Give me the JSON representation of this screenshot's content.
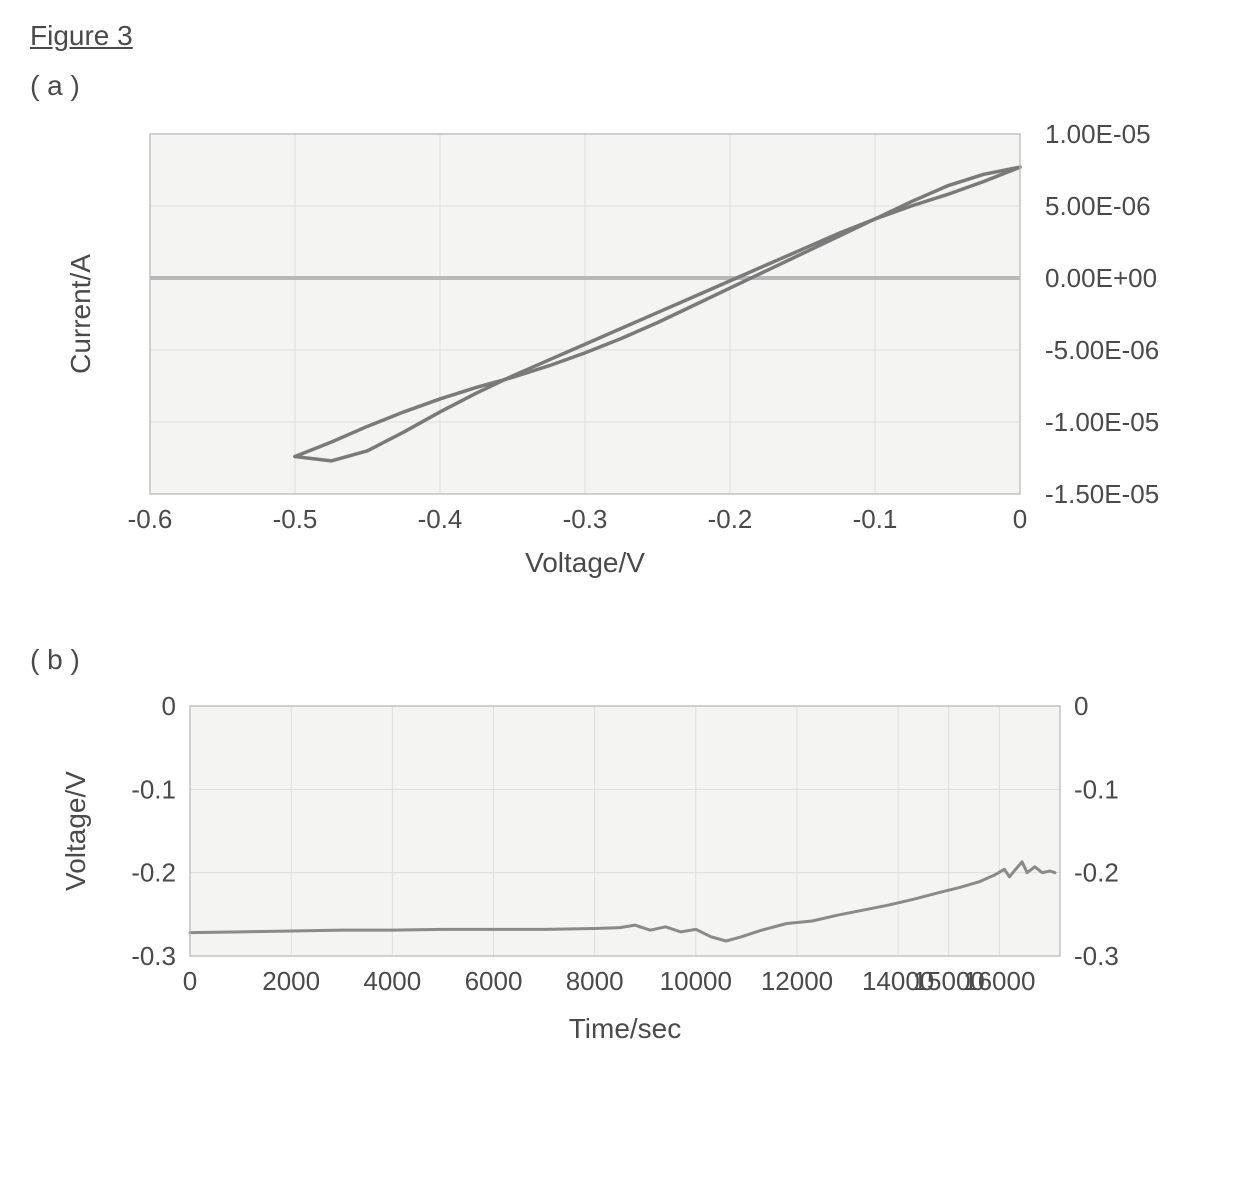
{
  "figure_title": "Figure 3",
  "panel_a": {
    "label": "( a )",
    "type": "line",
    "xlabel": "Voltage/V",
    "ylabel": "Current/A",
    "xlim": [
      -0.6,
      0.0
    ],
    "ylim": [
      -1.5e-05,
      1e-05
    ],
    "xticks": [
      -0.6,
      -0.5,
      -0.4,
      -0.3,
      -0.2,
      -0.1,
      0
    ],
    "xtick_labels": [
      "-0.6",
      "-0.5",
      "-0.4",
      "-0.3",
      "-0.2",
      "-0.1",
      "0"
    ],
    "yticks": [
      -1.5e-05,
      -1e-05,
      -5e-06,
      0.0,
      5e-06,
      1e-05
    ],
    "ytick_labels": [
      "-1.50E-05",
      "-1.00E-05",
      "-5.00E-06",
      "0.00E+00",
      "5.00E-06",
      "1.00E-05"
    ],
    "ytick_side": "right",
    "label_fontsize": 28,
    "tick_fontsize": 26,
    "plot_bg": "#f4f4f2",
    "page_bg": "#ffffff",
    "grid_color": "#dedede",
    "zero_line_color": "#b8b8b8",
    "zero_line_width": 4,
    "border_color": "#bcbcbc",
    "line_color": "#7a7a7a",
    "line_width": 3.5,
    "text_color": "#4a4a4a",
    "data_forward": [
      [
        -0.5,
        -1.24e-05
      ],
      [
        -0.475,
        -1.27e-05
      ],
      [
        -0.45,
        -1.2e-05
      ],
      [
        -0.425,
        -1.07e-05
      ],
      [
        -0.4,
        -9.3e-06
      ],
      [
        -0.375,
        -8e-06
      ],
      [
        -0.35,
        -6.8e-06
      ],
      [
        -0.325,
        -5.7e-06
      ],
      [
        -0.3,
        -4.6e-06
      ],
      [
        -0.275,
        -3.5e-06
      ],
      [
        -0.25,
        -2.4e-06
      ],
      [
        -0.225,
        -1.3e-06
      ],
      [
        -0.2,
        -2e-07
      ],
      [
        -0.175,
        9e-07
      ],
      [
        -0.15,
        2e-06
      ],
      [
        -0.125,
        3.1e-06
      ],
      [
        -0.1,
        4.1e-06
      ],
      [
        -0.075,
        5e-06
      ],
      [
        -0.05,
        5.8e-06
      ],
      [
        -0.025,
        6.7e-06
      ],
      [
        0.0,
        7.7e-06
      ]
    ],
    "data_reverse": [
      [
        0.0,
        7.7e-06
      ],
      [
        -0.025,
        7.2e-06
      ],
      [
        -0.05,
        6.4e-06
      ],
      [
        -0.075,
        5.3e-06
      ],
      [
        -0.1,
        4.1e-06
      ],
      [
        -0.125,
        2.9e-06
      ],
      [
        -0.15,
        1.7e-06
      ],
      [
        -0.175,
        5e-07
      ],
      [
        -0.2,
        -7e-07
      ],
      [
        -0.225,
        -1.9e-06
      ],
      [
        -0.25,
        -3.1e-06
      ],
      [
        -0.275,
        -4.2e-06
      ],
      [
        -0.3,
        -5.2e-06
      ],
      [
        -0.325,
        -6.1e-06
      ],
      [
        -0.35,
        -6.9e-06
      ],
      [
        -0.375,
        -7.6e-06
      ],
      [
        -0.4,
        -8.4e-06
      ],
      [
        -0.425,
        -9.3e-06
      ],
      [
        -0.45,
        -1.03e-05
      ],
      [
        -0.475,
        -1.14e-05
      ],
      [
        -0.5,
        -1.24e-05
      ]
    ]
  },
  "panel_b": {
    "label": "( b )",
    "type": "line",
    "xlabel": "Time/sec",
    "ylabel": "Voltage/V",
    "xlim": [
      0,
      17200
    ],
    "ylim": [
      -0.3,
      0.0
    ],
    "xticks": [
      0,
      2000,
      4000,
      6000,
      8000,
      10000,
      12000,
      14000,
      15000,
      16000
    ],
    "xtick_labels": [
      "0",
      "2000",
      "4000",
      "6000",
      "8000",
      "10000",
      "12000",
      "14000",
      "15000",
      "16000"
    ],
    "yticks_left": [
      0,
      -0.1,
      -0.2,
      -0.3
    ],
    "ytick_left_labels": [
      "0",
      "-0.1",
      "-0.2",
      "-0.3"
    ],
    "yticks_right": [
      0,
      -0.1,
      -0.2,
      -0.3
    ],
    "ytick_right_labels": [
      "0",
      "-0.1",
      "-0.2",
      "-0.3"
    ],
    "label_fontsize": 28,
    "tick_fontsize": 26,
    "plot_bg": "#f4f4f2",
    "page_bg": "#ffffff",
    "grid_color": "#dedede",
    "border_color": "#bcbcbc",
    "line_color": "#8a8a8a",
    "line_width": 3,
    "text_color": "#4a4a4a",
    "data": [
      [
        0,
        -0.272
      ],
      [
        1000,
        -0.271
      ],
      [
        2000,
        -0.27
      ],
      [
        3000,
        -0.269
      ],
      [
        4000,
        -0.269
      ],
      [
        5000,
        -0.268
      ],
      [
        6000,
        -0.268
      ],
      [
        7000,
        -0.268
      ],
      [
        8000,
        -0.267
      ],
      [
        8500,
        -0.266
      ],
      [
        8800,
        -0.263
      ],
      [
        9100,
        -0.269
      ],
      [
        9400,
        -0.265
      ],
      [
        9700,
        -0.271
      ],
      [
        10000,
        -0.268
      ],
      [
        10300,
        -0.277
      ],
      [
        10600,
        -0.282
      ],
      [
        10900,
        -0.277
      ],
      [
        11300,
        -0.269
      ],
      [
        11800,
        -0.261
      ],
      [
        12300,
        -0.258
      ],
      [
        12800,
        -0.251
      ],
      [
        13300,
        -0.245
      ],
      [
        13800,
        -0.239
      ],
      [
        14300,
        -0.232
      ],
      [
        14800,
        -0.224
      ],
      [
        15200,
        -0.218
      ],
      [
        15600,
        -0.211
      ],
      [
        15900,
        -0.203
      ],
      [
        16100,
        -0.196
      ],
      [
        16200,
        -0.205
      ],
      [
        16350,
        -0.194
      ],
      [
        16450,
        -0.187
      ],
      [
        16550,
        -0.2
      ],
      [
        16700,
        -0.193
      ],
      [
        16850,
        -0.2
      ],
      [
        17000,
        -0.198
      ],
      [
        17100,
        -0.2
      ]
    ]
  }
}
